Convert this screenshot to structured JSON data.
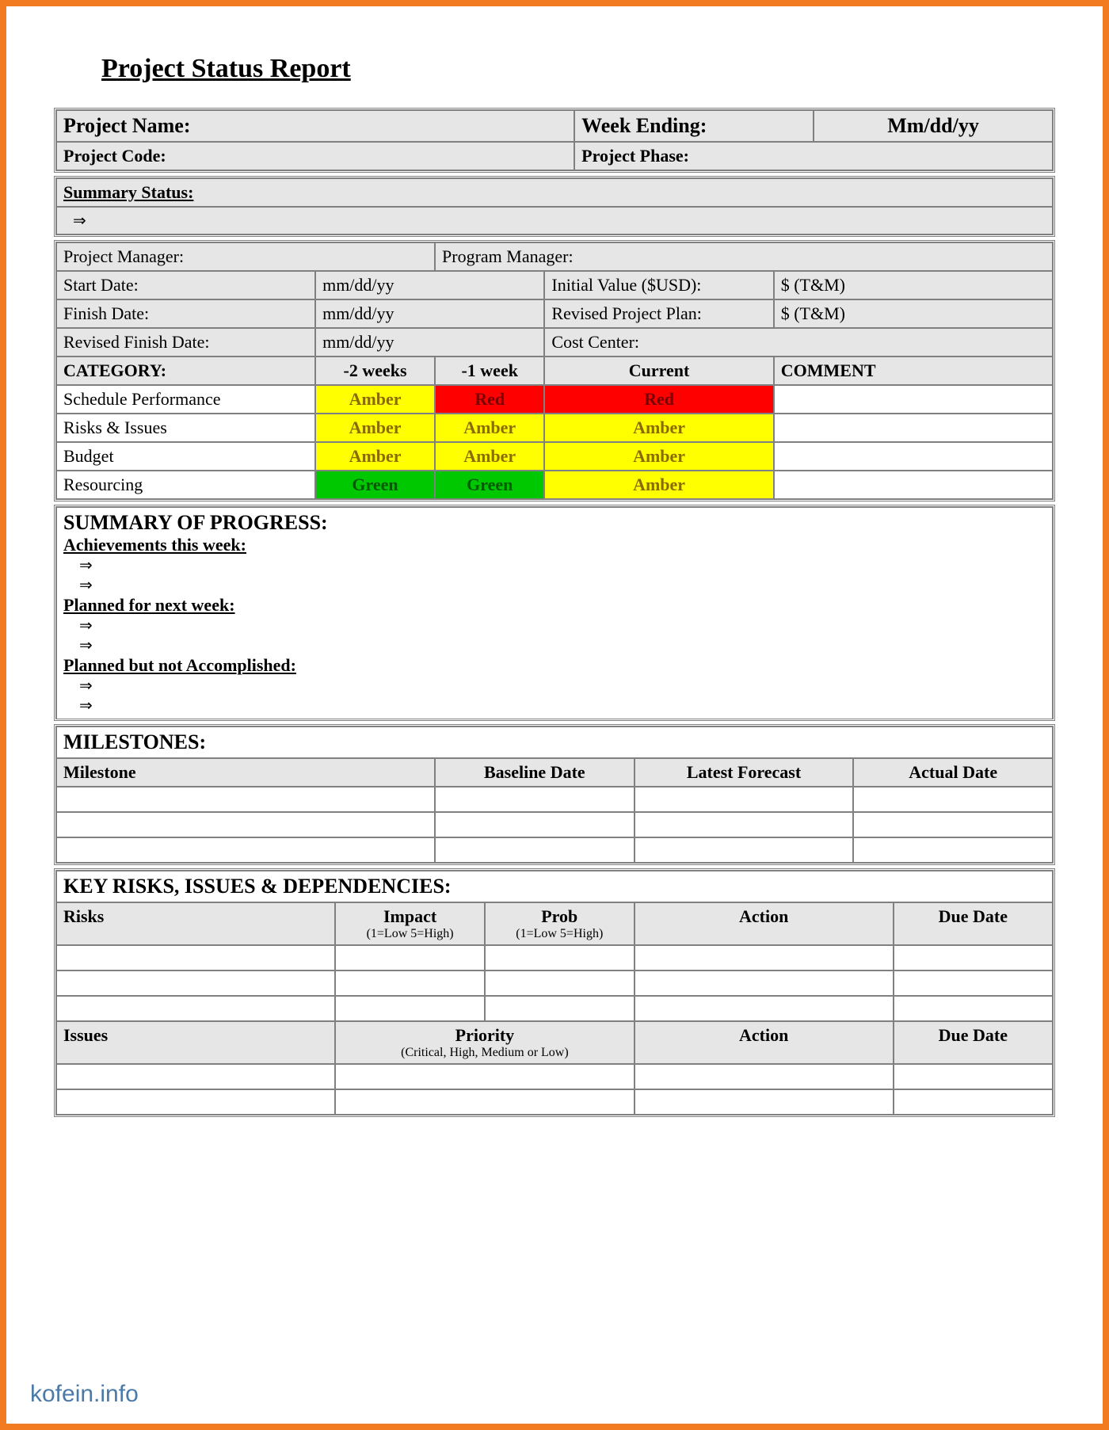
{
  "title": "Project Status Report",
  "header": {
    "project_name_label": "Project Name:",
    "week_ending_label": "Week Ending:",
    "week_ending_value": "Mm/dd/yy",
    "project_code_label": "Project Code:",
    "project_phase_label": "Project Phase:"
  },
  "summary_status": {
    "label": "Summary Status:",
    "bullet": "⇒"
  },
  "info_grid": {
    "project_manager_label": "Project Manager:",
    "program_manager_label": "Program Manager:",
    "start_date_label": "Start Date:",
    "start_date_value": "mm/dd/yy",
    "initial_value_label": "Initial Value ($USD):",
    "initial_value_value": "$ (T&M)",
    "finish_date_label": "Finish Date:",
    "finish_date_value": "mm/dd/yy",
    "revised_plan_label": "Revised Project Plan:",
    "revised_plan_value": "$ (T&M)",
    "revised_finish_label": "Revised Finish Date:",
    "revised_finish_value": "mm/dd/yy",
    "cost_center_label": "Cost Center:"
  },
  "category_table": {
    "headers": {
      "category": "CATEGORY:",
      "minus2": "-2 weeks",
      "minus1": "-1 week",
      "current": "Current",
      "comment": "COMMENT"
    },
    "rows": [
      {
        "label": "Schedule Performance",
        "m2": "Amber",
        "m2_class": "rag-amber",
        "m1": "Red",
        "m1_class": "rag-red",
        "cur": "Red",
        "cur_class": "rag-red"
      },
      {
        "label": "Risks & Issues",
        "m2": "Amber",
        "m2_class": "rag-amber",
        "m1": "Amber",
        "m1_class": "rag-amber",
        "cur": "Amber",
        "cur_class": "rag-amber"
      },
      {
        "label": "Budget",
        "m2": "Amber",
        "m2_class": "rag-amber",
        "m1": "Amber",
        "m1_class": "rag-amber",
        "cur": "Amber",
        "cur_class": "rag-amber"
      },
      {
        "label": "Resourcing",
        "m2": "Green",
        "m2_class": "rag-green",
        "m1": "Green",
        "m1_class": "rag-green",
        "cur": "Amber",
        "cur_class": "rag-amber"
      }
    ]
  },
  "progress": {
    "title": "SUMMARY OF PROGRESS:",
    "achievements_label": "Achievements this week:",
    "planned_next_label": "Planned for next week:",
    "planned_not_label": "Planned but not Accomplished:",
    "bullet": "⇒"
  },
  "milestones": {
    "title": "MILESTONES:",
    "cols": {
      "milestone": "Milestone",
      "baseline": "Baseline Date",
      "forecast": "Latest Forecast",
      "actual": "Actual Date"
    }
  },
  "risks": {
    "title": "KEY RISKS, ISSUES & DEPENDENCIES:",
    "risks_cols": {
      "risks": "Risks",
      "impact": "Impact",
      "impact_sub": "(1=Low 5=High)",
      "prob": "Prob",
      "prob_sub": "(1=Low 5=High)",
      "action": "Action",
      "due": "Due Date"
    },
    "issues_cols": {
      "issues": "Issues",
      "priority": "Priority",
      "priority_sub": "(Critical, High, Medium or Low)",
      "action": "Action",
      "due": "Due Date"
    }
  },
  "footer": "kofein.info",
  "colors": {
    "frame": "#f27b21",
    "grey_bg": "#e6e6e6",
    "amber": "#ffff00",
    "red": "#ff0000",
    "green": "#00c800"
  }
}
